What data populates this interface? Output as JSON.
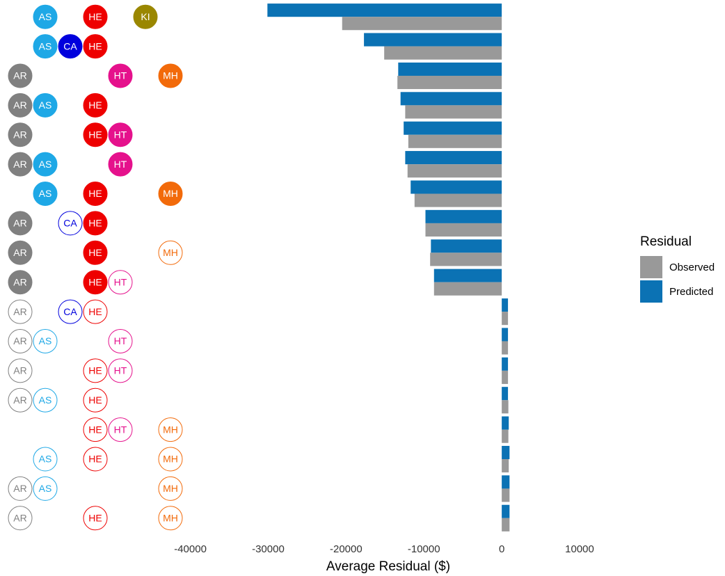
{
  "chart_data": {
    "type": "bar",
    "orientation": "horizontal",
    "x_label": "Average Residual ($)",
    "xlim": [
      -43000,
      12500
    ],
    "xticks": [
      -40000,
      -30000,
      -20000,
      -10000,
      0,
      10000
    ],
    "grid": false,
    "legend": {
      "title": "Residual",
      "position": "right"
    },
    "series": [
      {
        "name": "Observed",
        "color": "#999999",
        "values": [
          -20500,
          -15100,
          -13400,
          -12400,
          -12000,
          -12100,
          -11200,
          -9800,
          -9200,
          -8700,
          800,
          800,
          800,
          850,
          850,
          900,
          1000,
          1000
        ]
      },
      {
        "name": "Predicted",
        "color": "#0b72b4",
        "values": [
          -30100,
          -17700,
          -13300,
          -13000,
          -12600,
          -12400,
          -11700,
          -9800,
          -9100,
          -8700,
          800,
          800,
          800,
          800,
          900,
          1000,
          1000,
          1000
        ]
      }
    ],
    "marker_colors": [
      "#808080",
      "#1ea8e6",
      "#0000dd",
      "#ee0000",
      "#e5118c",
      "#9a8700",
      "#f26a0a"
    ],
    "markers": [
      [
        null,
        {
          "label": "AS",
          "filled": true
        },
        null,
        {
          "label": "HE",
          "filled": true
        },
        null,
        {
          "label": "KI",
          "filled": true
        },
        null
      ],
      [
        null,
        {
          "label": "AS",
          "filled": true
        },
        {
          "label": "CA",
          "filled": true
        },
        {
          "label": "HE",
          "filled": true
        },
        null,
        null,
        null
      ],
      [
        {
          "label": "AR",
          "filled": true
        },
        null,
        null,
        null,
        {
          "label": "HT",
          "filled": true
        },
        null,
        {
          "label": "MH",
          "filled": true
        }
      ],
      [
        {
          "label": "AR",
          "filled": true
        },
        {
          "label": "AS",
          "filled": true
        },
        null,
        {
          "label": "HE",
          "filled": true
        },
        null,
        null,
        null
      ],
      [
        {
          "label": "AR",
          "filled": true
        },
        null,
        null,
        {
          "label": "HE",
          "filled": true
        },
        {
          "label": "HT",
          "filled": true
        },
        null,
        null
      ],
      [
        {
          "label": "AR",
          "filled": true
        },
        {
          "label": "AS",
          "filled": true
        },
        null,
        null,
        {
          "label": "HT",
          "filled": true
        },
        null,
        null
      ],
      [
        null,
        {
          "label": "AS",
          "filled": true
        },
        null,
        {
          "label": "HE",
          "filled": true
        },
        null,
        null,
        {
          "label": "MH",
          "filled": true
        }
      ],
      [
        {
          "label": "AR",
          "filled": true
        },
        null,
        {
          "label": "CA",
          "filled": false
        },
        {
          "label": "HE",
          "filled": true
        },
        null,
        null,
        null
      ],
      [
        {
          "label": "AR",
          "filled": true
        },
        null,
        null,
        {
          "label": "HE",
          "filled": true
        },
        null,
        null,
        {
          "label": "MH",
          "filled": false
        }
      ],
      [
        {
          "label": "AR",
          "filled": true
        },
        null,
        null,
        {
          "label": "HE",
          "filled": true
        },
        {
          "label": "HT",
          "filled": false
        },
        null,
        null
      ],
      [
        {
          "label": "AR",
          "filled": false
        },
        null,
        {
          "label": "CA",
          "filled": false
        },
        {
          "label": "HE",
          "filled": false
        },
        null,
        null,
        null
      ],
      [
        {
          "label": "AR",
          "filled": false
        },
        {
          "label": "AS",
          "filled": false
        },
        null,
        null,
        {
          "label": "HT",
          "filled": false
        },
        null,
        null
      ],
      [
        {
          "label": "AR",
          "filled": false
        },
        null,
        null,
        {
          "label": "HE",
          "filled": false
        },
        {
          "label": "HT",
          "filled": false
        },
        null,
        null
      ],
      [
        {
          "label": "AR",
          "filled": false
        },
        {
          "label": "AS",
          "filled": false
        },
        null,
        {
          "label": "HE",
          "filled": false
        },
        null,
        null,
        null
      ],
      [
        null,
        null,
        null,
        {
          "label": "HE",
          "filled": false
        },
        {
          "label": "HT",
          "filled": false
        },
        null,
        {
          "label": "MH",
          "filled": false
        }
      ],
      [
        null,
        {
          "label": "AS",
          "filled": false
        },
        null,
        {
          "label": "HE",
          "filled": false
        },
        null,
        null,
        {
          "label": "MH",
          "filled": false
        }
      ],
      [
        {
          "label": "AR",
          "filled": false
        },
        {
          "label": "AS",
          "filled": false
        },
        null,
        null,
        null,
        null,
        {
          "label": "MH",
          "filled": false
        }
      ],
      [
        {
          "label": "AR",
          "filled": false
        },
        null,
        null,
        {
          "label": "HE",
          "filled": false
        },
        null,
        null,
        {
          "label": "MH",
          "filled": false
        }
      ]
    ]
  }
}
